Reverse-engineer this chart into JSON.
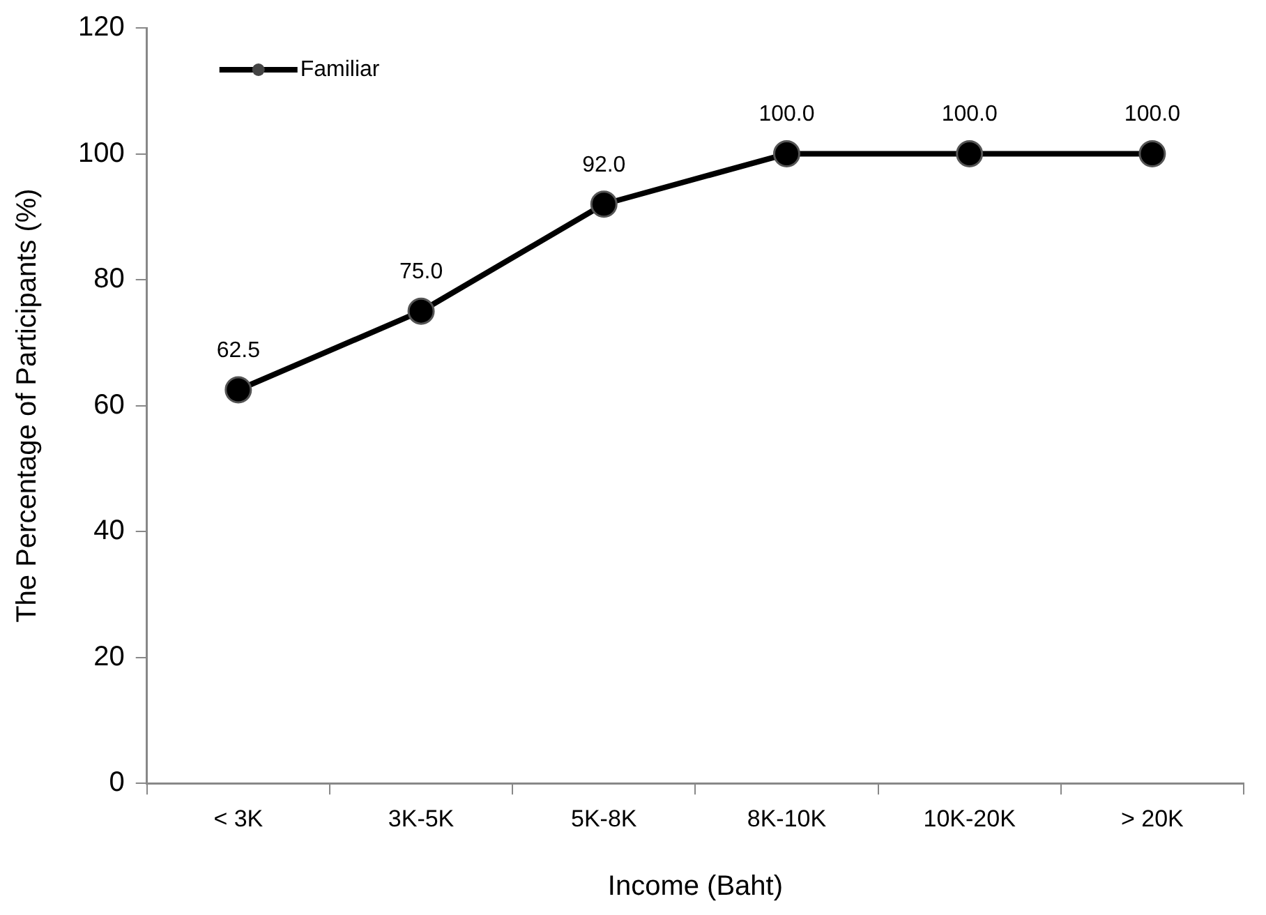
{
  "chart_data": {
    "type": "line",
    "xlabel": "Income (Baht)",
    "ylabel": "The Percentage of Participants (%)",
    "categories": [
      "< 3K",
      "3K-5K",
      "5K-8K",
      "8K-10K",
      "10K-20K",
      "> 20K"
    ],
    "series": [
      {
        "name": "Familiar",
        "color": "#000000",
        "values": [
          62.5,
          75.0,
          92.0,
          100.0,
          100.0,
          100.0
        ],
        "value_labels": [
          "62.5",
          "75.0",
          "92.0",
          "100.0",
          "100.0",
          "100.0"
        ]
      }
    ],
    "ylim": [
      0,
      120
    ],
    "yticks": [
      0,
      20,
      40,
      60,
      80,
      100,
      120
    ],
    "grid": false,
    "legend": "top left",
    "marker": "circle",
    "line_style": "solid"
  }
}
